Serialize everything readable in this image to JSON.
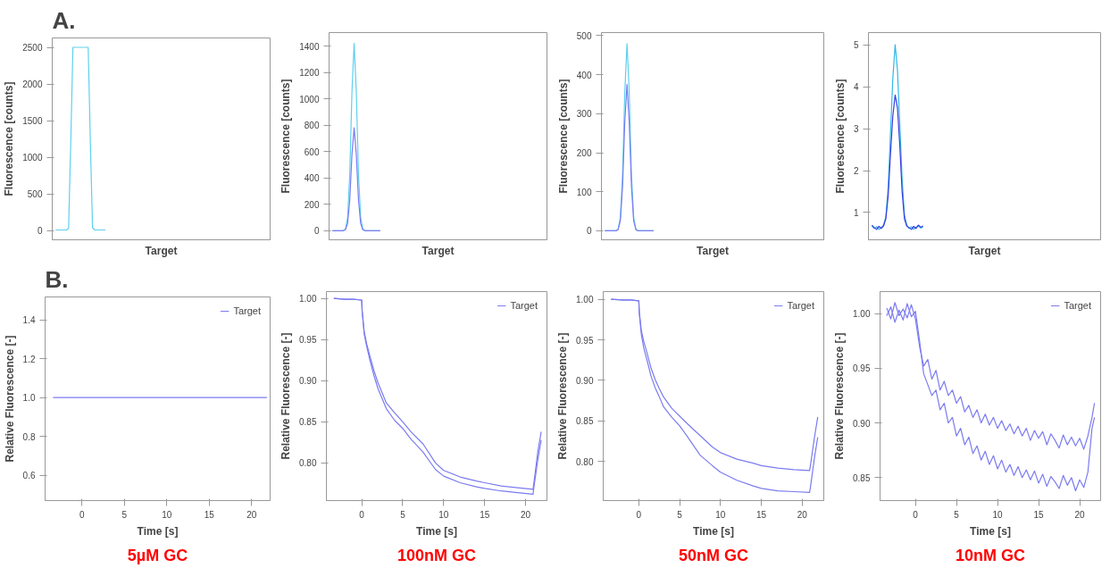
{
  "chart_data": [
    {
      "type": "line",
      "title": "A.",
      "xlabel": "Target",
      "ylabel": "Fluorescence [counts]",
      "tick_labels": "y",
      "ylim": [
        -124,
        2628
      ],
      "yticks": [
        0,
        500,
        1000,
        1500,
        2000,
        2500
      ],
      "categories": [
        null,
        null,
        null,
        null,
        null,
        null,
        null,
        null,
        null,
        null,
        null,
        null,
        null,
        null,
        null,
        null,
        null,
        null,
        null,
        null,
        null,
        null,
        null,
        null,
        null,
        null,
        null,
        null,
        null,
        null,
        null,
        null,
        null,
        null,
        null,
        null,
        null,
        null,
        null,
        null,
        null,
        null,
        null,
        null,
        null,
        null,
        null,
        null,
        null,
        null,
        null,
        null,
        null,
        null,
        null,
        null,
        null,
        null,
        null,
        null,
        null,
        null,
        null,
        null,
        null,
        null,
        null,
        null,
        null,
        null,
        null,
        null,
        null,
        null,
        null,
        null,
        null,
        null,
        null,
        null,
        null,
        null,
        null,
        null,
        null,
        null,
        null,
        null,
        null,
        null,
        null,
        null,
        null,
        null,
        null,
        null,
        null,
        null,
        null,
        null
      ],
      "series": [
        {
          "color": "#5ed0ee",
          "values": [
            null,
            10,
            10,
            10,
            10,
            10,
            10,
            30,
            1200,
            2500,
            2500,
            2500,
            2500,
            2500,
            2500,
            2500,
            2500,
            1200,
            40,
            10,
            10,
            10,
            10,
            10,
            10,
            null,
            null,
            null,
            null,
            null,
            null,
            null,
            null,
            null,
            null,
            null,
            null,
            null,
            null,
            null,
            null,
            null,
            null,
            null,
            null,
            null,
            null,
            null,
            null,
            null,
            null,
            null,
            null,
            null,
            null,
            null,
            null,
            null,
            null,
            null,
            null,
            null,
            null,
            null,
            null,
            null,
            null,
            null,
            null,
            null,
            null,
            null,
            null,
            null,
            null,
            null,
            null,
            null,
            null,
            null,
            null,
            null,
            null,
            null,
            null,
            null,
            null,
            null,
            null,
            null,
            null,
            null,
            null,
            null,
            null,
            null,
            null,
            null,
            null,
            null
          ]
        }
      ]
    },
    {
      "type": "line",
      "xlabel": "Target",
      "ylabel": "Fluorescence [counts]",
      "tick_labels": "y",
      "ylim": [
        -69,
        1502
      ],
      "yticks": [
        0,
        200,
        400,
        600,
        800,
        1000,
        1200,
        1400
      ],
      "categories": [
        null,
        null,
        null,
        null,
        null,
        null,
        null,
        null,
        null,
        null,
        null,
        null,
        null,
        null,
        null,
        null,
        null,
        null,
        null,
        null,
        null,
        null,
        null,
        null,
        null,
        null,
        null,
        null,
        null,
        null,
        null,
        null,
        null,
        null,
        null,
        null,
        null,
        null,
        null,
        null,
        null,
        null,
        null,
        null,
        null,
        null,
        null,
        null,
        null,
        null,
        null,
        null,
        null,
        null,
        null,
        null,
        null,
        null,
        null,
        null,
        null,
        null,
        null,
        null,
        null,
        null,
        null,
        null,
        null,
        null,
        null,
        null,
        null,
        null,
        null,
        null,
        null,
        null,
        null,
        null,
        null,
        null,
        null,
        null,
        null,
        null,
        null,
        null,
        null,
        null,
        null,
        null,
        null,
        null,
        null,
        null,
        null,
        null,
        null,
        null
      ],
      "series": [
        {
          "color": "#5ed0ee",
          "values": [
            null,
            0,
            0,
            0,
            0,
            0,
            0,
            13,
            100,
            430,
            1050,
            1420,
            1050,
            430,
            100,
            13,
            0,
            0,
            0,
            0,
            0,
            0,
            0,
            0,
            null,
            null,
            null,
            null,
            null,
            null,
            null,
            null,
            null,
            null,
            null,
            null,
            null,
            null,
            null,
            null,
            null,
            null,
            null,
            null,
            null,
            null,
            null,
            null,
            null,
            null,
            null,
            null,
            null,
            null,
            null,
            null,
            null,
            null,
            null,
            null,
            null,
            null,
            null,
            null,
            null,
            null,
            null,
            null,
            null,
            null,
            null,
            null,
            null,
            null,
            null,
            null,
            null,
            null,
            null,
            null,
            null,
            null,
            null,
            null,
            null,
            null,
            null,
            null,
            null,
            null,
            null,
            null,
            null,
            null,
            null,
            null,
            null,
            null,
            null,
            null
          ]
        },
        {
          "color": "#7b7bf2",
          "values": [
            null,
            0,
            0,
            0,
            0,
            0,
            0,
            7,
            55,
            234,
            577,
            780,
            577,
            234,
            55,
            7,
            0,
            0,
            0,
            0,
            0,
            0,
            0,
            0,
            null,
            null,
            null,
            null,
            null,
            null,
            null,
            null,
            null,
            null,
            null,
            null,
            null,
            null,
            null,
            null,
            null,
            null,
            null,
            null,
            null,
            null,
            null,
            null,
            null,
            null,
            null,
            null,
            null,
            null,
            null,
            null,
            null,
            null,
            null,
            null,
            null,
            null,
            null,
            null,
            null,
            null,
            null,
            null,
            null,
            null,
            null,
            null,
            null,
            null,
            null,
            null,
            null,
            null,
            null,
            null,
            null,
            null,
            null,
            null,
            null,
            null,
            null,
            null,
            null,
            null,
            null,
            null,
            null,
            null,
            null,
            null,
            null,
            null,
            null,
            null
          ]
        }
      ]
    },
    {
      "type": "line",
      "xlabel": "Target",
      "ylabel": "Fluorescence [counts]",
      "tick_labels": "y",
      "ylim": [
        -23,
        508
      ],
      "yticks": [
        0,
        100,
        200,
        300,
        400,
        500
      ],
      "categories": [
        null,
        null,
        null,
        null,
        null,
        null,
        null,
        null,
        null,
        null,
        null,
        null,
        null,
        null,
        null,
        null,
        null,
        null,
        null,
        null,
        null,
        null,
        null,
        null,
        null,
        null,
        null,
        null,
        null,
        null,
        null,
        null,
        null,
        null,
        null,
        null,
        null,
        null,
        null,
        null,
        null,
        null,
        null,
        null,
        null,
        null,
        null,
        null,
        null,
        null,
        null,
        null,
        null,
        null,
        null,
        null,
        null,
        null,
        null,
        null,
        null,
        null,
        null,
        null,
        null,
        null,
        null,
        null,
        null,
        null,
        null,
        null,
        null,
        null,
        null,
        null,
        null,
        null,
        null,
        null,
        null,
        null,
        null,
        null,
        null,
        null,
        null,
        null,
        null,
        null,
        null,
        null,
        null,
        null,
        null,
        null,
        null,
        null,
        null,
        null
      ],
      "series": [
        {
          "color": "#5ed0ee",
          "values": [
            null,
            0,
            0,
            0,
            0,
            0,
            0,
            4,
            34,
            144,
            355,
            480,
            355,
            144,
            34,
            4,
            0,
            0,
            0,
            0,
            0,
            0,
            0,
            0,
            null,
            null,
            null,
            null,
            null,
            null,
            null,
            null,
            null,
            null,
            null,
            null,
            null,
            null,
            null,
            null,
            null,
            null,
            null,
            null,
            null,
            null,
            null,
            null,
            null,
            null,
            null,
            null,
            null,
            null,
            null,
            null,
            null,
            null,
            null,
            null,
            null,
            null,
            null,
            null,
            null,
            null,
            null,
            null,
            null,
            null,
            null,
            null,
            null,
            null,
            null,
            null,
            null,
            null,
            null,
            null,
            null,
            null,
            null,
            null,
            null,
            null,
            null,
            null,
            null,
            null,
            null,
            null,
            null,
            null,
            null,
            null,
            null,
            null,
            null,
            null
          ]
        },
        {
          "color": "#7b7bf2",
          "values": [
            null,
            0,
            0,
            0,
            0,
            0,
            0,
            3,
            26,
            113,
            278,
            375,
            278,
            113,
            26,
            3,
            0,
            0,
            0,
            0,
            0,
            0,
            0,
            0,
            null,
            null,
            null,
            null,
            null,
            null,
            null,
            null,
            null,
            null,
            null,
            null,
            null,
            null,
            null,
            null,
            null,
            null,
            null,
            null,
            null,
            null,
            null,
            null,
            null,
            null,
            null,
            null,
            null,
            null,
            null,
            null,
            null,
            null,
            null,
            null,
            null,
            null,
            null,
            null,
            null,
            null,
            null,
            null,
            null,
            null,
            null,
            null,
            null,
            null,
            null,
            null,
            null,
            null,
            null,
            null,
            null,
            null,
            null,
            null,
            null,
            null,
            null,
            null,
            null,
            null,
            null,
            null,
            null,
            null,
            null,
            null,
            null,
            null,
            null,
            null
          ]
        }
      ]
    },
    {
      "type": "line",
      "xlabel": "Target",
      "ylabel": "Fluorescence [counts]",
      "tick_labels": "y",
      "ylim": [
        0.35,
        5.29
      ],
      "yticks": [
        1,
        2,
        3,
        4,
        5
      ],
      "categories": [
        null,
        null,
        null,
        null,
        null,
        null,
        null,
        null,
        null,
        null,
        null,
        null,
        null,
        null,
        null,
        null,
        null,
        null,
        null,
        null,
        null,
        null,
        null,
        null,
        null,
        null,
        null,
        null,
        null,
        null,
        null,
        null,
        null,
        null,
        null,
        null,
        null,
        null,
        null,
        null,
        null,
        null,
        null,
        null,
        null,
        null,
        null,
        null,
        null,
        null,
        null,
        null,
        null,
        null,
        null,
        null,
        null,
        null,
        null,
        null,
        null,
        null,
        null,
        null,
        null,
        null,
        null,
        null,
        null,
        null,
        null,
        null,
        null,
        null,
        null,
        null,
        null,
        null,
        null,
        null,
        null,
        null,
        null,
        null,
        null,
        null,
        null,
        null,
        null,
        null,
        null,
        null,
        null,
        null,
        null,
        null,
        null,
        null,
        null,
        null
      ],
      "series": [
        {
          "color": "#2fb8e6",
          "values": [
            null,
            0.68,
            0.62,
            0.66,
            0.6,
            0.64,
            0.7,
            0.9,
            1.6,
            2.9,
            4.2,
            5.0,
            4.4,
            3.1,
            1.8,
            0.95,
            0.7,
            0.62,
            0.66,
            0.6,
            0.65,
            0.68,
            0.63,
            0.66,
            null,
            null,
            null,
            null,
            null,
            null,
            null,
            null,
            null,
            null,
            null,
            null,
            null,
            null,
            null,
            null,
            null,
            null,
            null,
            null,
            null,
            null,
            null,
            null,
            null,
            null,
            null,
            null,
            null,
            null,
            null,
            null,
            null,
            null,
            null,
            null,
            null,
            null,
            null,
            null,
            null,
            null,
            null,
            null,
            null,
            null,
            null,
            null,
            null,
            null,
            null,
            null,
            null,
            null,
            null,
            null,
            null,
            null,
            null,
            null,
            null,
            null,
            null,
            null,
            null,
            null,
            null,
            null,
            null,
            null,
            null,
            null,
            null,
            null,
            null,
            null
          ]
        },
        {
          "color": "#3a3ae0",
          "values": [
            null,
            0.7,
            0.64,
            0.6,
            0.67,
            0.62,
            0.68,
            0.85,
            1.4,
            2.4,
            3.3,
            3.8,
            3.5,
            2.6,
            1.5,
            0.85,
            0.68,
            0.64,
            0.6,
            0.67,
            0.62,
            0.7,
            0.65,
            0.68,
            null,
            null,
            null,
            null,
            null,
            null,
            null,
            null,
            null,
            null,
            null,
            null,
            null,
            null,
            null,
            null,
            null,
            null,
            null,
            null,
            null,
            null,
            null,
            null,
            null,
            null,
            null,
            null,
            null,
            null,
            null,
            null,
            null,
            null,
            null,
            null,
            null,
            null,
            null,
            null,
            null,
            null,
            null,
            null,
            null,
            null,
            null,
            null,
            null,
            null,
            null,
            null,
            null,
            null,
            null,
            null,
            null,
            null,
            null,
            null,
            null,
            null,
            null,
            null,
            null,
            null,
            null,
            null,
            null,
            null,
            null,
            null,
            null,
            null,
            null,
            null
          ]
        }
      ]
    },
    {
      "type": "line",
      "title": "B.",
      "xlabel": "Time [s]",
      "ylabel": "Relative Fluorescence [-]",
      "legend": "top right",
      "annotations": [
        "5µM GC"
      ],
      "xlim": [
        -4.34,
        22.18
      ],
      "xticks": [
        0,
        5,
        10,
        15,
        20
      ],
      "ylim": [
        0.469,
        1.518
      ],
      "yticks": [
        0.6,
        0.8,
        {
          "value": 1.0,
          "label": "1.0"
        },
        1.2,
        1.4
      ],
      "series": [
        {
          "name": "Target",
          "color": "#7b7bf0",
          "x": [
            -3.4,
            21.8
          ],
          "values": [
            1.0,
            1.0
          ]
        }
      ]
    },
    {
      "type": "line",
      "xlabel": "Time [s]",
      "ylabel": "Relative Fluorescence [-]",
      "legend": "top right",
      "annotations": [
        "100nM GC"
      ],
      "xlim": [
        -4.31,
        22.6
      ],
      "xticks": [
        0,
        5,
        10,
        15,
        20
      ],
      "ylim": [
        0.7543,
        1.0083
      ],
      "yticks": [
        {
          "value": 0.8,
          "label": "0.80"
        },
        0.85,
        {
          "value": 0.9,
          "label": "0.90"
        },
        0.95,
        {
          "value": 1.0,
          "label": "1.00"
        }
      ],
      "series": [
        {
          "name": "Target",
          "color": "#7b7bf0",
          "x": [
            -3.4,
            -2,
            -1,
            0,
            0.05,
            0.3,
            0.6,
            1,
            1.5,
            2,
            2.5,
            3,
            4,
            5,
            6,
            7.5,
            9,
            10,
            12,
            14,
            15,
            17,
            19,
            20.9,
            21,
            21.5,
            21.9
          ],
          "values": [
            1.0,
            0.999,
            0.999,
            0.998,
            0.985,
            0.96,
            0.945,
            0.93,
            0.912,
            0.897,
            0.885,
            0.873,
            0.861,
            0.85,
            0.838,
            0.823,
            0.8,
            0.791,
            0.783,
            0.778,
            0.776,
            0.772,
            0.77,
            0.768,
            0.775,
            0.815,
            0.838
          ]
        },
        {
          "color": "#7b7bf0",
          "x": [
            -3.4,
            -2,
            -1,
            0,
            0.05,
            0.3,
            0.6,
            1,
            1.5,
            2,
            2.5,
            3,
            4,
            5,
            6,
            7.5,
            9,
            10,
            12,
            14,
            15,
            17,
            19,
            20.9,
            21,
            21.5,
            21.9
          ],
          "values": [
            1.0,
            0.999,
            0.999,
            0.998,
            0.985,
            0.957,
            0.942,
            0.925,
            0.906,
            0.89,
            0.878,
            0.866,
            0.852,
            0.842,
            0.829,
            0.813,
            0.792,
            0.784,
            0.776,
            0.771,
            0.769,
            0.766,
            0.764,
            0.762,
            0.77,
            0.805,
            0.828
          ]
        }
      ]
    },
    {
      "type": "line",
      "xlabel": "Time [s]",
      "ylabel": "Relative Fluorescence [-]",
      "legend": "top right",
      "annotations": [
        "50nM GC"
      ],
      "xlim": [
        -4.36,
        22.64
      ],
      "xticks": [
        0,
        5,
        10,
        15,
        20
      ],
      "ylim": [
        0.752,
        1.0094
      ],
      "yticks": [
        {
          "value": 0.8,
          "label": "0.80"
        },
        0.85,
        {
          "value": 0.9,
          "label": "0.90"
        },
        0.95,
        {
          "value": 1.0,
          "label": "1.00"
        }
      ],
      "series": [
        {
          "name": "Target",
          "color": "#7b7bf0",
          "x": [
            -3.4,
            -2,
            -1,
            0,
            0.05,
            0.3,
            0.6,
            1,
            1.5,
            2,
            2.5,
            3,
            4,
            5,
            6,
            7.5,
            9,
            10,
            12,
            14,
            15,
            17,
            19,
            20.9,
            21,
            21.5,
            21.9
          ],
          "values": [
            1.0,
            0.999,
            0.999,
            0.998,
            0.985,
            0.962,
            0.948,
            0.934,
            0.915,
            0.901,
            0.89,
            0.88,
            0.866,
            0.856,
            0.846,
            0.832,
            0.818,
            0.811,
            0.803,
            0.798,
            0.795,
            0.792,
            0.79,
            0.789,
            0.795,
            0.83,
            0.855
          ]
        },
        {
          "color": "#7b7bf0",
          "x": [
            -3.4,
            -2,
            -1,
            0,
            0.05,
            0.3,
            0.6,
            1,
            1.5,
            2,
            2.5,
            3,
            4,
            5,
            6,
            7.5,
            9,
            10,
            12,
            14,
            15,
            17,
            19,
            20.9,
            21,
            21.5,
            21.9
          ],
          "values": [
            1.0,
            0.999,
            0.999,
            0.998,
            0.983,
            0.957,
            0.94,
            0.925,
            0.905,
            0.891,
            0.88,
            0.868,
            0.855,
            0.844,
            0.83,
            0.808,
            0.795,
            0.787,
            0.777,
            0.77,
            0.767,
            0.764,
            0.763,
            0.762,
            0.768,
            0.805,
            0.83
          ]
        }
      ]
    },
    {
      "type": "line",
      "xlabel": "Time [s]",
      "ylabel": "Relative Fluorescence [-]",
      "legend": "top right",
      "annotations": [
        "10nM GC"
      ],
      "xlim": [
        -4.31,
        22.55
      ],
      "xticks": [
        0,
        5,
        10,
        15,
        20
      ],
      "ylim": [
        0.829,
        1.02
      ],
      "yticks": [
        0.85,
        {
          "value": 0.9,
          "label": "0.90"
        },
        0.95,
        {
          "value": 1.0,
          "label": "1.00"
        }
      ],
      "series": [
        {
          "name": "Target",
          "color": "#7b7bf0",
          "x": [
            -3.5,
            -3,
            -2.5,
            -2,
            -1.5,
            -1,
            -0.5,
            0,
            0.5,
            1,
            1.5,
            2,
            2.5,
            3,
            3.5,
            4,
            4.5,
            5,
            5.5,
            6,
            6.5,
            7,
            7.5,
            8,
            8.5,
            9,
            9.5,
            10,
            10.5,
            11,
            11.5,
            12,
            12.5,
            13,
            13.5,
            14,
            14.5,
            15,
            15.5,
            16,
            16.5,
            17,
            17.5,
            18,
            18.5,
            19,
            19.5,
            20,
            20.5,
            21,
            21.5,
            21.8
          ],
          "values": [
            1.005,
            0.995,
            1.01,
            0.998,
            1.004,
            0.996,
            1.008,
            0.995,
            0.97,
            0.952,
            0.958,
            0.94,
            0.948,
            0.93,
            0.938,
            0.925,
            0.93,
            0.918,
            0.924,
            0.91,
            0.916,
            0.905,
            0.912,
            0.9,
            0.908,
            0.898,
            0.905,
            0.895,
            0.902,
            0.893,
            0.899,
            0.89,
            0.897,
            0.888,
            0.895,
            0.884,
            0.893,
            0.886,
            0.892,
            0.88,
            0.89,
            0.884,
            0.877,
            0.889,
            0.88,
            0.887,
            0.879,
            0.886,
            0.876,
            0.888,
            0.905,
            0.918
          ]
        },
        {
          "color": "#7b7bf0",
          "x": [
            -3.5,
            -3,
            -2.5,
            -2,
            -1.5,
            -1,
            -0.5,
            0,
            0.5,
            1,
            1.5,
            2,
            2.5,
            3,
            3.5,
            4,
            4.5,
            5,
            5.5,
            6,
            6.5,
            7,
            7.5,
            8,
            8.5,
            9,
            9.5,
            10,
            10.5,
            11,
            11.5,
            12,
            12.5,
            13,
            13.5,
            14,
            14.5,
            15,
            15.5,
            16,
            16.5,
            17,
            17.5,
            18,
            18.5,
            19,
            19.5,
            20,
            20.5,
            21,
            21.5,
            21.8
          ],
          "values": [
            0.998,
            1.006,
            0.992,
            1.003,
            0.994,
            1.009,
            0.997,
            1.002,
            0.975,
            0.945,
            0.935,
            0.925,
            0.93,
            0.912,
            0.918,
            0.9,
            0.905,
            0.888,
            0.895,
            0.88,
            0.887,
            0.872,
            0.879,
            0.866,
            0.874,
            0.862,
            0.87,
            0.858,
            0.866,
            0.855,
            0.862,
            0.852,
            0.86,
            0.85,
            0.857,
            0.848,
            0.856,
            0.845,
            0.853,
            0.842,
            0.851,
            0.846,
            0.84,
            0.852,
            0.843,
            0.85,
            0.838,
            0.848,
            0.841,
            0.855,
            0.895,
            0.905
          ]
        }
      ]
    }
  ]
}
